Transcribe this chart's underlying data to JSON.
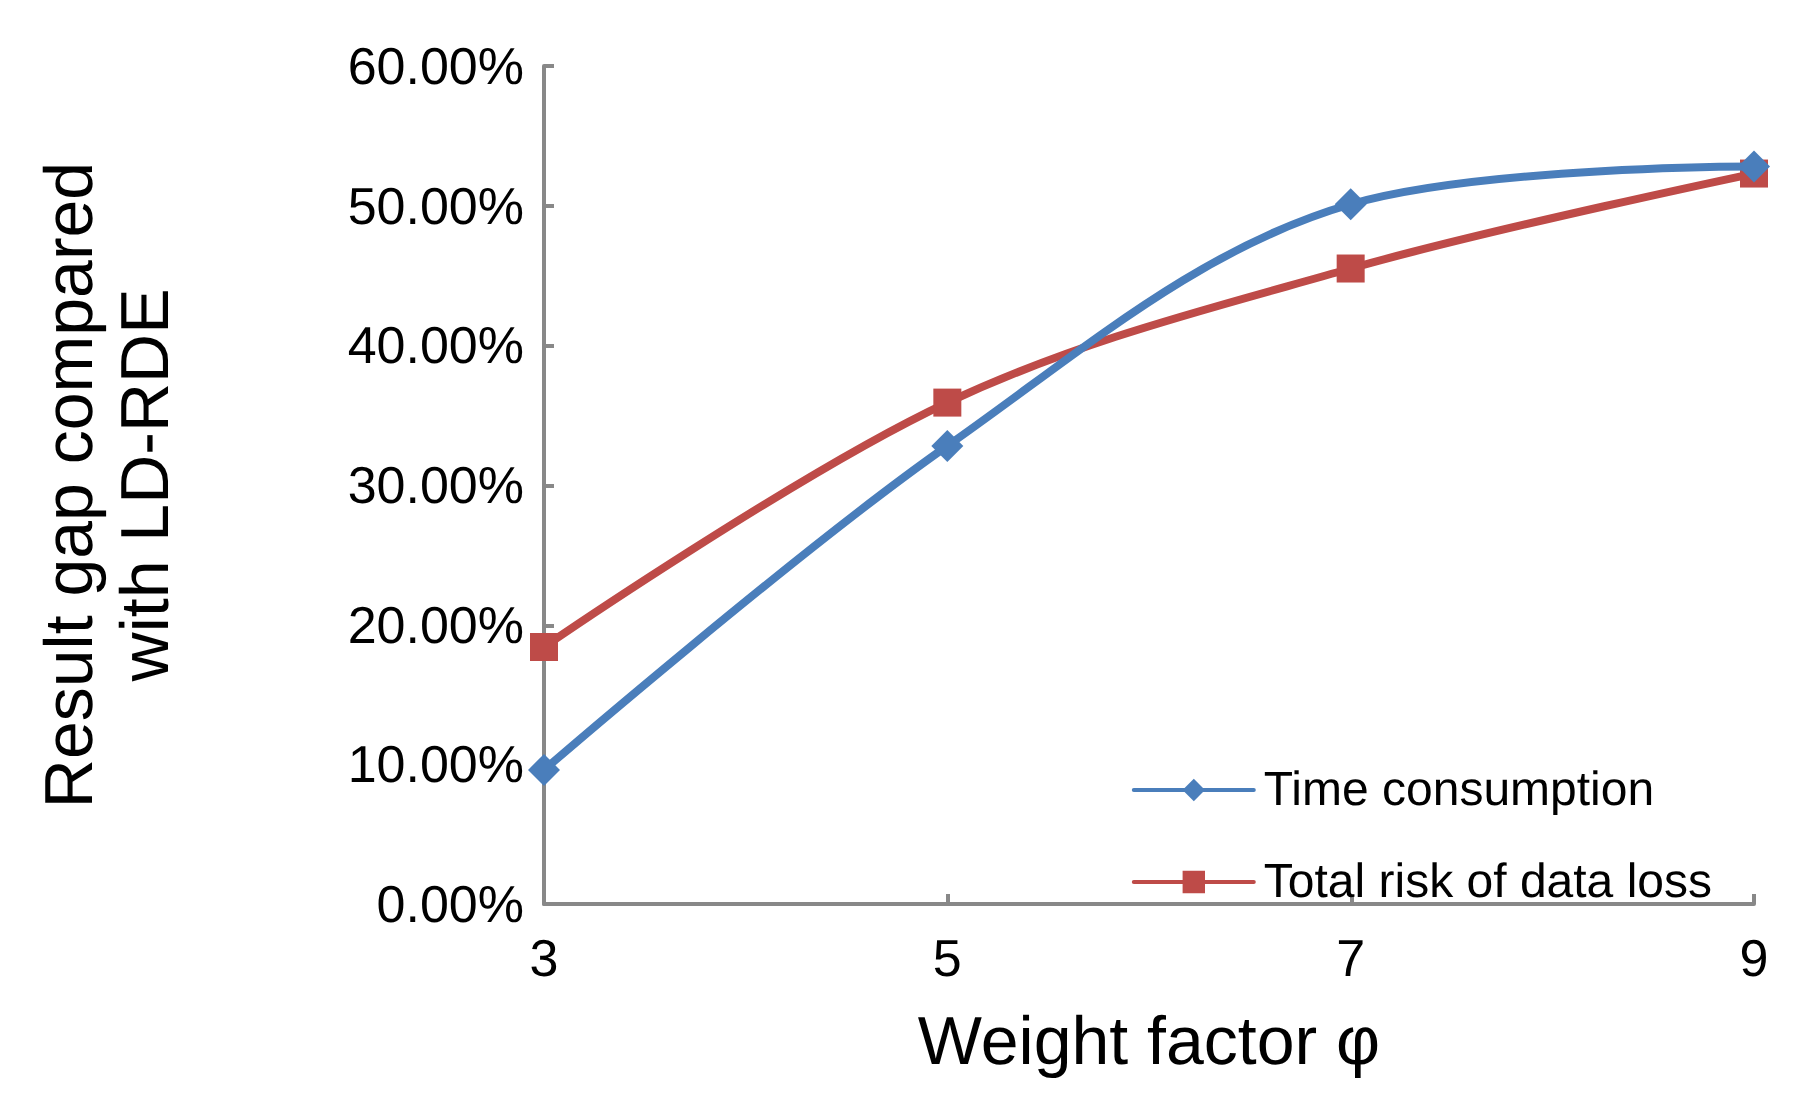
{
  "chart_data": {
    "type": "line",
    "xlabel": "Weight factor φ",
    "ylabel": "Result gap compared\nwith LD-RDE",
    "x": [
      3,
      5,
      7,
      9
    ],
    "series": [
      {
        "name": "Time consumption",
        "color": "#4a7ebb",
        "marker": "diamond",
        "values": [
          9.6,
          32.8,
          50.1,
          52.8
        ]
      },
      {
        "name": "Total risk of data loss",
        "color": "#be4b48",
        "marker": "square",
        "values": [
          18.4,
          35.9,
          45.5,
          52.3
        ]
      }
    ],
    "xlim": [
      3,
      9
    ],
    "xticks": [
      3,
      5,
      7,
      9
    ],
    "ylim": [
      0,
      60
    ],
    "yticks": [
      {
        "value": 0,
        "label": "0.00%"
      },
      {
        "value": 10,
        "label": "10.00%"
      },
      {
        "value": 20,
        "label": "20.00%"
      },
      {
        "value": 30,
        "label": "30.00%"
      },
      {
        "value": 40,
        "label": "40.00%"
      },
      {
        "value": 50,
        "label": "50.00%"
      },
      {
        "value": 60,
        "label": "60.00%"
      }
    ],
    "grid": false,
    "legend": "bottom right"
  }
}
